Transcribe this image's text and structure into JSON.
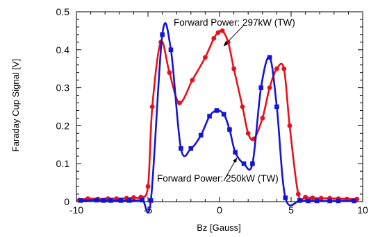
{
  "chart_data": {
    "type": "line",
    "xlabel": "Bz [Gauss]",
    "ylabel": "Faraday Cup Signal [V]",
    "xlim": [
      -10,
      10
    ],
    "ylim": [
      0,
      0.5
    ],
    "x_ticks": [
      "-10",
      "-5",
      "0",
      "5",
      "10"
    ],
    "y_ticks": [
      "0",
      "0.1",
      "0.2",
      "0.3",
      "0.4",
      "0.5"
    ],
    "grid": false,
    "legend": "none",
    "series": [
      {
        "color": "#e8101a",
        "marker": "circle",
        "points": [
          [
            -9.8,
            0.004
          ],
          [
            -9.2,
            0.008
          ],
          [
            -8.5,
            0.007
          ],
          [
            -7.8,
            0.008
          ],
          [
            -7.2,
            0.008
          ],
          [
            -6.5,
            0.009
          ],
          [
            -6.0,
            0.011
          ],
          [
            -5.5,
            0.012
          ],
          [
            -5.0,
            0.04
          ],
          [
            -4.7,
            0.25
          ],
          [
            -4.1,
            0.42
          ],
          [
            -3.5,
            0.34
          ],
          [
            -2.8,
            0.26
          ],
          [
            -1.9,
            0.32
          ],
          [
            -1.0,
            0.38
          ],
          [
            -0.4,
            0.43
          ],
          [
            -0.1,
            0.445
          ],
          [
            0.2,
            0.45
          ],
          [
            0.6,
            0.42
          ],
          [
            1.0,
            0.35
          ],
          [
            1.6,
            0.25
          ],
          [
            2.0,
            0.18
          ],
          [
            2.4,
            0.165
          ],
          [
            3.0,
            0.22
          ],
          [
            3.5,
            0.3
          ],
          [
            4.0,
            0.35
          ],
          [
            4.5,
            0.35
          ],
          [
            4.9,
            0.2
          ],
          [
            5.5,
            0.02
          ],
          [
            6.0,
            0.012
          ],
          [
            6.5,
            0.01
          ],
          [
            7.1,
            0.009
          ],
          [
            7.7,
            0.009
          ],
          [
            8.3,
            0.008
          ],
          [
            8.9,
            0.007
          ],
          [
            9.6,
            0.007
          ]
        ]
      },
      {
        "color": "#1414d2",
        "marker": "square",
        "points": [
          [
            -9.7,
            0.003
          ],
          [
            -8.6,
            0.004
          ],
          [
            -8.1,
            0.003
          ],
          [
            -7.6,
            0.003
          ],
          [
            -6.9,
            0.003
          ],
          [
            -6.3,
            0.003
          ],
          [
            -5.4,
            0.004
          ],
          [
            -4.8,
            0.003
          ],
          [
            -4.0,
            0.44
          ],
          [
            -3.4,
            0.4
          ],
          [
            -2.7,
            0.14
          ],
          [
            -2.0,
            0.14
          ],
          [
            -1.3,
            0.175
          ],
          [
            -0.7,
            0.225
          ],
          [
            -0.2,
            0.24
          ],
          [
            0.3,
            0.23
          ],
          [
            0.7,
            0.19
          ],
          [
            1.1,
            0.13
          ],
          [
            1.7,
            0.1
          ],
          [
            2.3,
            0.1
          ],
          [
            2.9,
            0.3
          ],
          [
            3.5,
            0.38
          ],
          [
            4.0,
            0.25
          ],
          [
            4.6,
            0.01
          ],
          [
            5.6,
            0.003
          ],
          [
            6.2,
            0.002
          ],
          [
            6.8,
            0.002
          ],
          [
            7.7,
            0.002
          ],
          [
            8.3,
            0.002
          ],
          [
            9.4,
            0.002
          ]
        ]
      }
    ],
    "annotations": [
      {
        "text": "Forward Power: 297kW (TW)",
        "arrow_to": [
          0.3,
          0.41
        ]
      },
      {
        "text": "Forward Power: 250kW (TW)",
        "arrow_to": [
          1.2,
          0.115
        ]
      }
    ]
  }
}
